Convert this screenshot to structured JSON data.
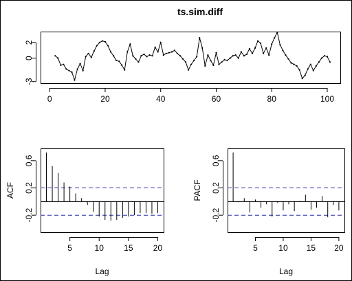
{
  "chart_data": [
    {
      "type": "line",
      "title": "ts.sim.diff",
      "xlabel": "",
      "ylabel": "",
      "xlim": [
        0,
        102
      ],
      "ylim": [
        -3.2,
        3.4
      ],
      "xticks": [
        0,
        20,
        40,
        60,
        80,
        100
      ],
      "yticks": [
        -3,
        0,
        2
      ],
      "ytick_labels": [
        "-3",
        "0",
        "2"
      ],
      "x_start": 2,
      "values": [
        0.3,
        0.0,
        -0.9,
        -0.8,
        -1.4,
        -1.6,
        -1.8,
        -2.8,
        -1.4,
        -0.7,
        -1.6,
        0.2,
        0.6,
        0.1,
        0.9,
        1.6,
        2.0,
        2.2,
        2.1,
        1.6,
        0.8,
        0.3,
        -0.3,
        -0.4,
        -0.9,
        -1.5,
        0.8,
        1.8,
        0.3,
        -0.1,
        -0.5,
        0.3,
        0.5,
        0.2,
        0.4,
        0.3,
        1.4,
        0.8,
        2.0,
        0.4,
        0.6,
        0.7,
        0.8,
        1.0,
        0.6,
        0.3,
        -0.1,
        -0.5,
        -1.5,
        -0.8,
        -0.3,
        0.2,
        2.6,
        1.3,
        -1.0,
        0.4,
        -0.3,
        -0.9,
        0.7,
        -0.8,
        -0.5,
        -0.2,
        -0.3,
        0.0,
        0.3,
        0.4,
        0.0,
        0.8,
        0.3,
        0.5,
        1.2,
        0.6,
        1.3,
        2.2,
        1.9,
        0.6,
        1.3,
        0.4,
        1.8,
        2.6,
        3.3,
        1.7,
        1.0,
        0.4,
        -0.1,
        -0.6,
        -0.8,
        -1.0,
        -1.5,
        -2.6,
        -2.2,
        -1.4,
        -0.8,
        -1.6,
        -1.0,
        -0.5,
        0.0,
        0.3,
        0.2,
        -0.5
      ]
    },
    {
      "type": "bar",
      "title": "",
      "xlabel": "Lag",
      "ylabel": "ACF",
      "xlim": [
        0,
        21
      ],
      "ylim": [
        -0.45,
        0.78
      ],
      "xticks": [
        5,
        10,
        15,
        20
      ],
      "yticks": [
        -0.2,
        0.2,
        0.6
      ],
      "ytick_labels": [
        "-0.2",
        "0.2",
        "0.6"
      ],
      "ci": 0.2,
      "lags": [
        1,
        2,
        3,
        4,
        5,
        6,
        7,
        8,
        9,
        10,
        11,
        12,
        13,
        14,
        15,
        16,
        17,
        18,
        19,
        20
      ],
      "values": [
        0.72,
        0.52,
        0.42,
        0.28,
        0.22,
        0.12,
        0.05,
        -0.05,
        -0.15,
        -0.22,
        -0.27,
        -0.28,
        -0.27,
        -0.24,
        -0.22,
        -0.2,
        -0.17,
        -0.17,
        -0.18,
        -0.17
      ]
    },
    {
      "type": "bar",
      "title": "",
      "xlabel": "Lag",
      "ylabel": "PACF",
      "xlim": [
        0,
        21
      ],
      "ylim": [
        -0.45,
        0.78
      ],
      "xticks": [
        5,
        10,
        15,
        20
      ],
      "yticks": [
        -0.2,
        0.2,
        0.6
      ],
      "ytick_labels": [
        "-0.2",
        "0.2",
        "0.6"
      ],
      "ci": 0.2,
      "lags": [
        1,
        2,
        3,
        4,
        5,
        6,
        7,
        8,
        9,
        10,
        11,
        12,
        13,
        14,
        15,
        16,
        17,
        18,
        19,
        20
      ],
      "values": [
        0.72,
        -0.01,
        0.05,
        -0.16,
        0.03,
        -0.09,
        -0.04,
        -0.22,
        -0.02,
        -0.13,
        -0.04,
        -0.14,
        0.01,
        0.1,
        -0.12,
        -0.09,
        0.08,
        -0.23,
        -0.05,
        -0.13
      ]
    }
  ]
}
